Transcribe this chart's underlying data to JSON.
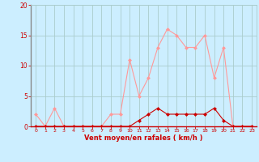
{
  "x": [
    0,
    1,
    2,
    3,
    4,
    5,
    6,
    7,
    8,
    9,
    10,
    11,
    12,
    13,
    14,
    15,
    16,
    17,
    18,
    19,
    20,
    21,
    22,
    23
  ],
  "y_light": [
    2,
    0,
    3,
    0,
    0,
    0,
    0,
    0,
    2,
    2,
    11,
    5,
    8,
    13,
    16,
    15,
    13,
    13,
    15,
    8,
    13,
    0,
    0,
    0
  ],
  "y_dark": [
    0,
    0,
    0,
    0,
    0,
    0,
    0,
    0,
    0,
    0,
    0,
    1,
    2,
    3,
    2,
    2,
    2,
    2,
    2,
    3,
    1,
    0,
    0,
    0
  ],
  "xlabel": "Vent moyen/en rafales ( km/h )",
  "ylim": [
    0,
    20
  ],
  "xlim": [
    -0.5,
    23.5
  ],
  "yticks": [
    0,
    5,
    10,
    15,
    20
  ],
  "xticks": [
    0,
    1,
    2,
    3,
    4,
    5,
    6,
    7,
    8,
    9,
    10,
    11,
    12,
    13,
    14,
    15,
    16,
    17,
    18,
    19,
    20,
    21,
    22,
    23
  ],
  "bg_color": "#cceeff",
  "line_color_light": "#ff9999",
  "line_color_dark": "#cc0000",
  "grid_color": "#aacccc",
  "tick_color": "#cc0000",
  "label_color": "#cc0000",
  "spine_left_color": "#888888",
  "spine_bottom_color": "#cc0000"
}
